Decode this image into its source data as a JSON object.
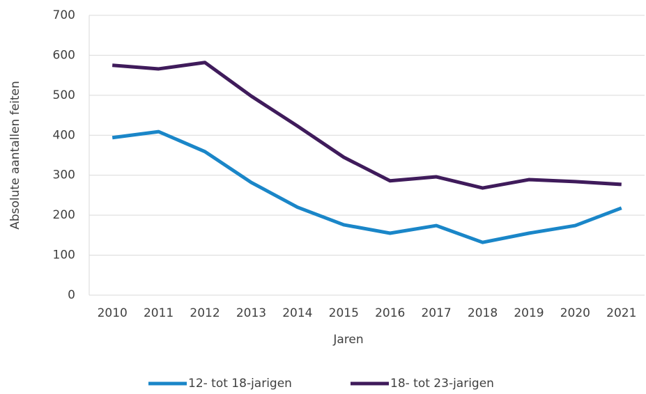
{
  "chart_data": {
    "type": "line",
    "categories": [
      "2010",
      "2011",
      "2012",
      "2013",
      "2014",
      "2015",
      "2016",
      "2017",
      "2018",
      "2019",
      "2020",
      "2021"
    ],
    "series": [
      {
        "name": "12- tot 18-jarigen",
        "color": "#1a86c8",
        "values": [
          394,
          409,
          359,
          282,
          220,
          176,
          155,
          174,
          132,
          155,
          174,
          218
        ]
      },
      {
        "name": "18- tot 23-jarigen",
        "color": "#3f1b5b",
        "values": [
          575,
          566,
          582,
          498,
          423,
          345,
          286,
          296,
          268,
          289,
          284,
          277
        ]
      }
    ],
    "xlabel": "Jaren",
    "ylabel": "Absolute aantallen feiten",
    "ylim": [
      0,
      700
    ],
    "yticks": [
      0,
      100,
      200,
      300,
      400,
      500,
      600,
      700
    ],
    "grid": true,
    "legend": "bottom"
  }
}
